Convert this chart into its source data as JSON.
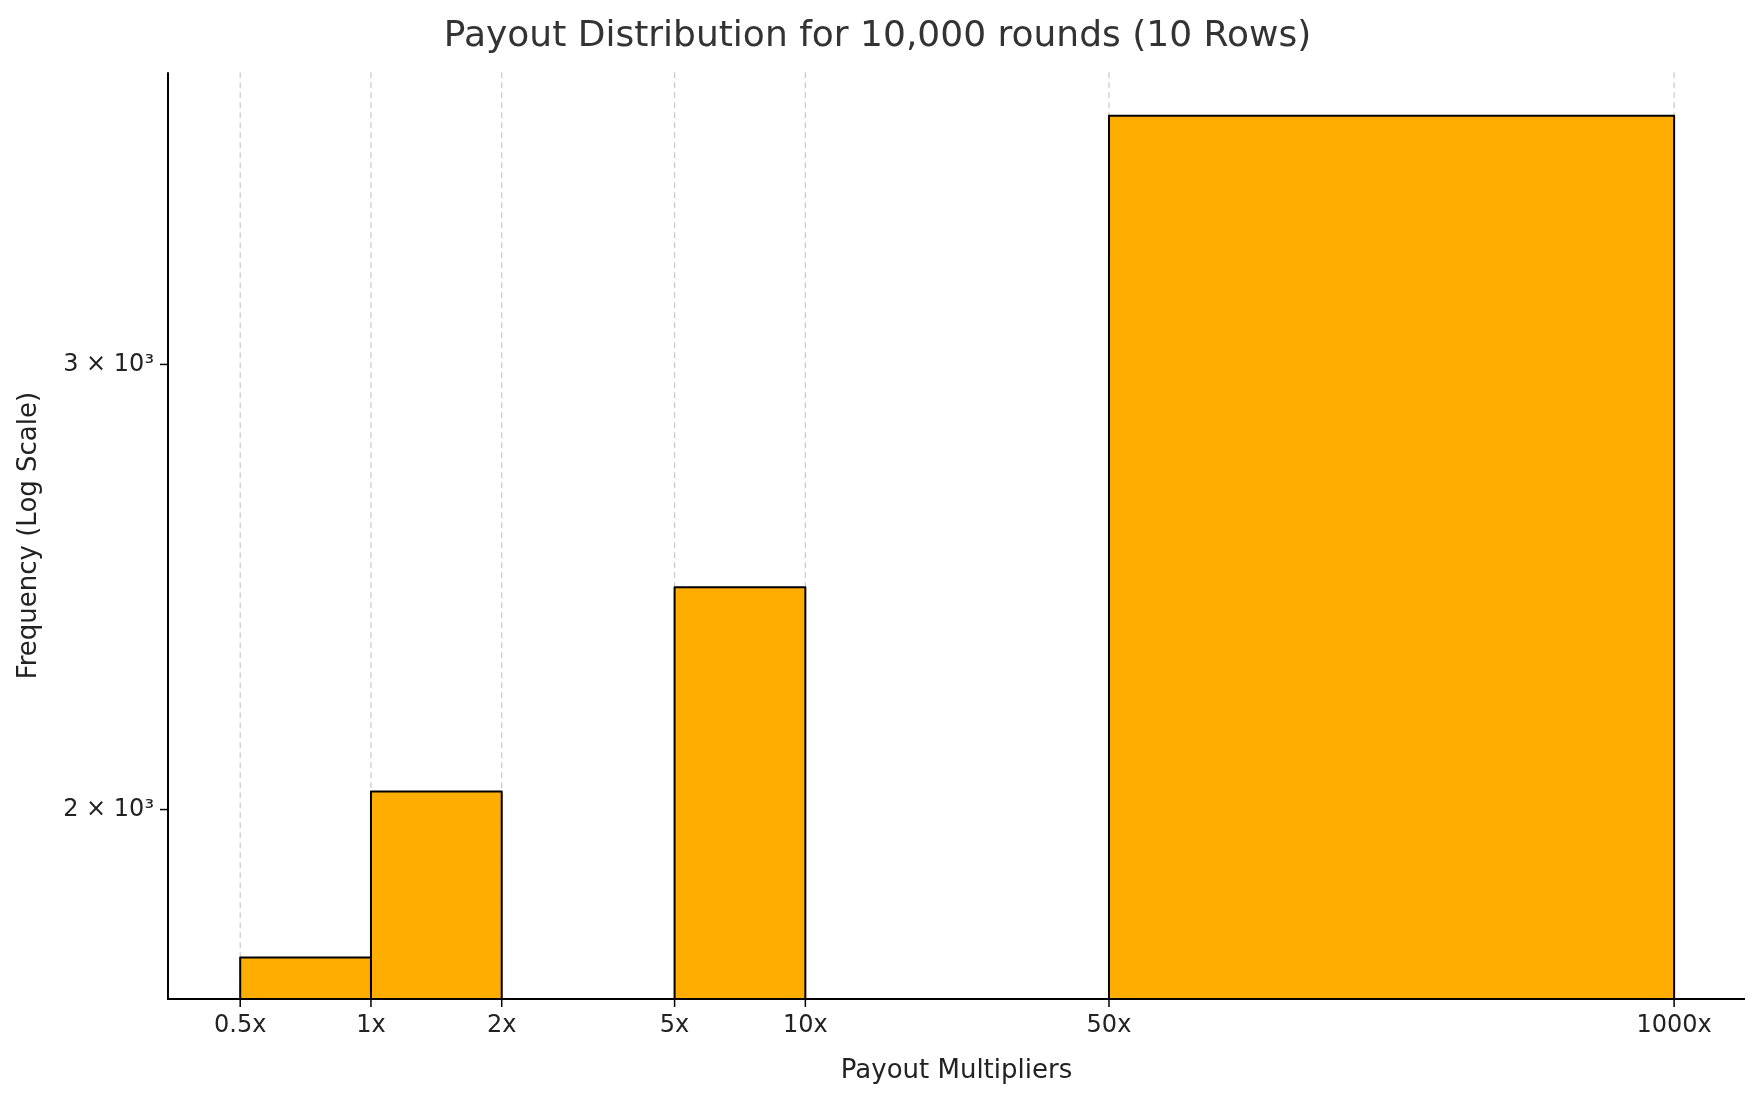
{
  "chart_data": {
    "type": "histogram",
    "title": "Payout Distribution for 10,000 rounds (10 Rows)",
    "xlabel": "Payout Multipliers",
    "ylabel": "Frequency (Log Scale)",
    "bins": [
      0.5,
      1,
      2,
      5,
      10,
      50,
      1000
    ],
    "values": [
      1748,
      2033,
      null,
      2449,
      null,
      3763
    ],
    "color": "#ffad00",
    "log": "xy",
    "xlim": [
      0.341,
      1456
    ],
    "xticks": [
      {
        "value": 0.5,
        "label": "0.5x"
      },
      {
        "value": 1,
        "label": "1x"
      },
      {
        "value": 2,
        "label": "2x"
      },
      {
        "value": 5,
        "label": "5x"
      },
      {
        "value": 10,
        "label": "10x"
      },
      {
        "value": 50,
        "label": "50x"
      },
      {
        "value": 1000,
        "label": "1000x"
      }
    ],
    "ylim": [
      1683,
      3915
    ],
    "yticks": [
      {
        "value": 2000,
        "label": "2 × 10³"
      },
      {
        "value": 3000,
        "label": "3 × 10³"
      }
    ],
    "grid": "x"
  }
}
